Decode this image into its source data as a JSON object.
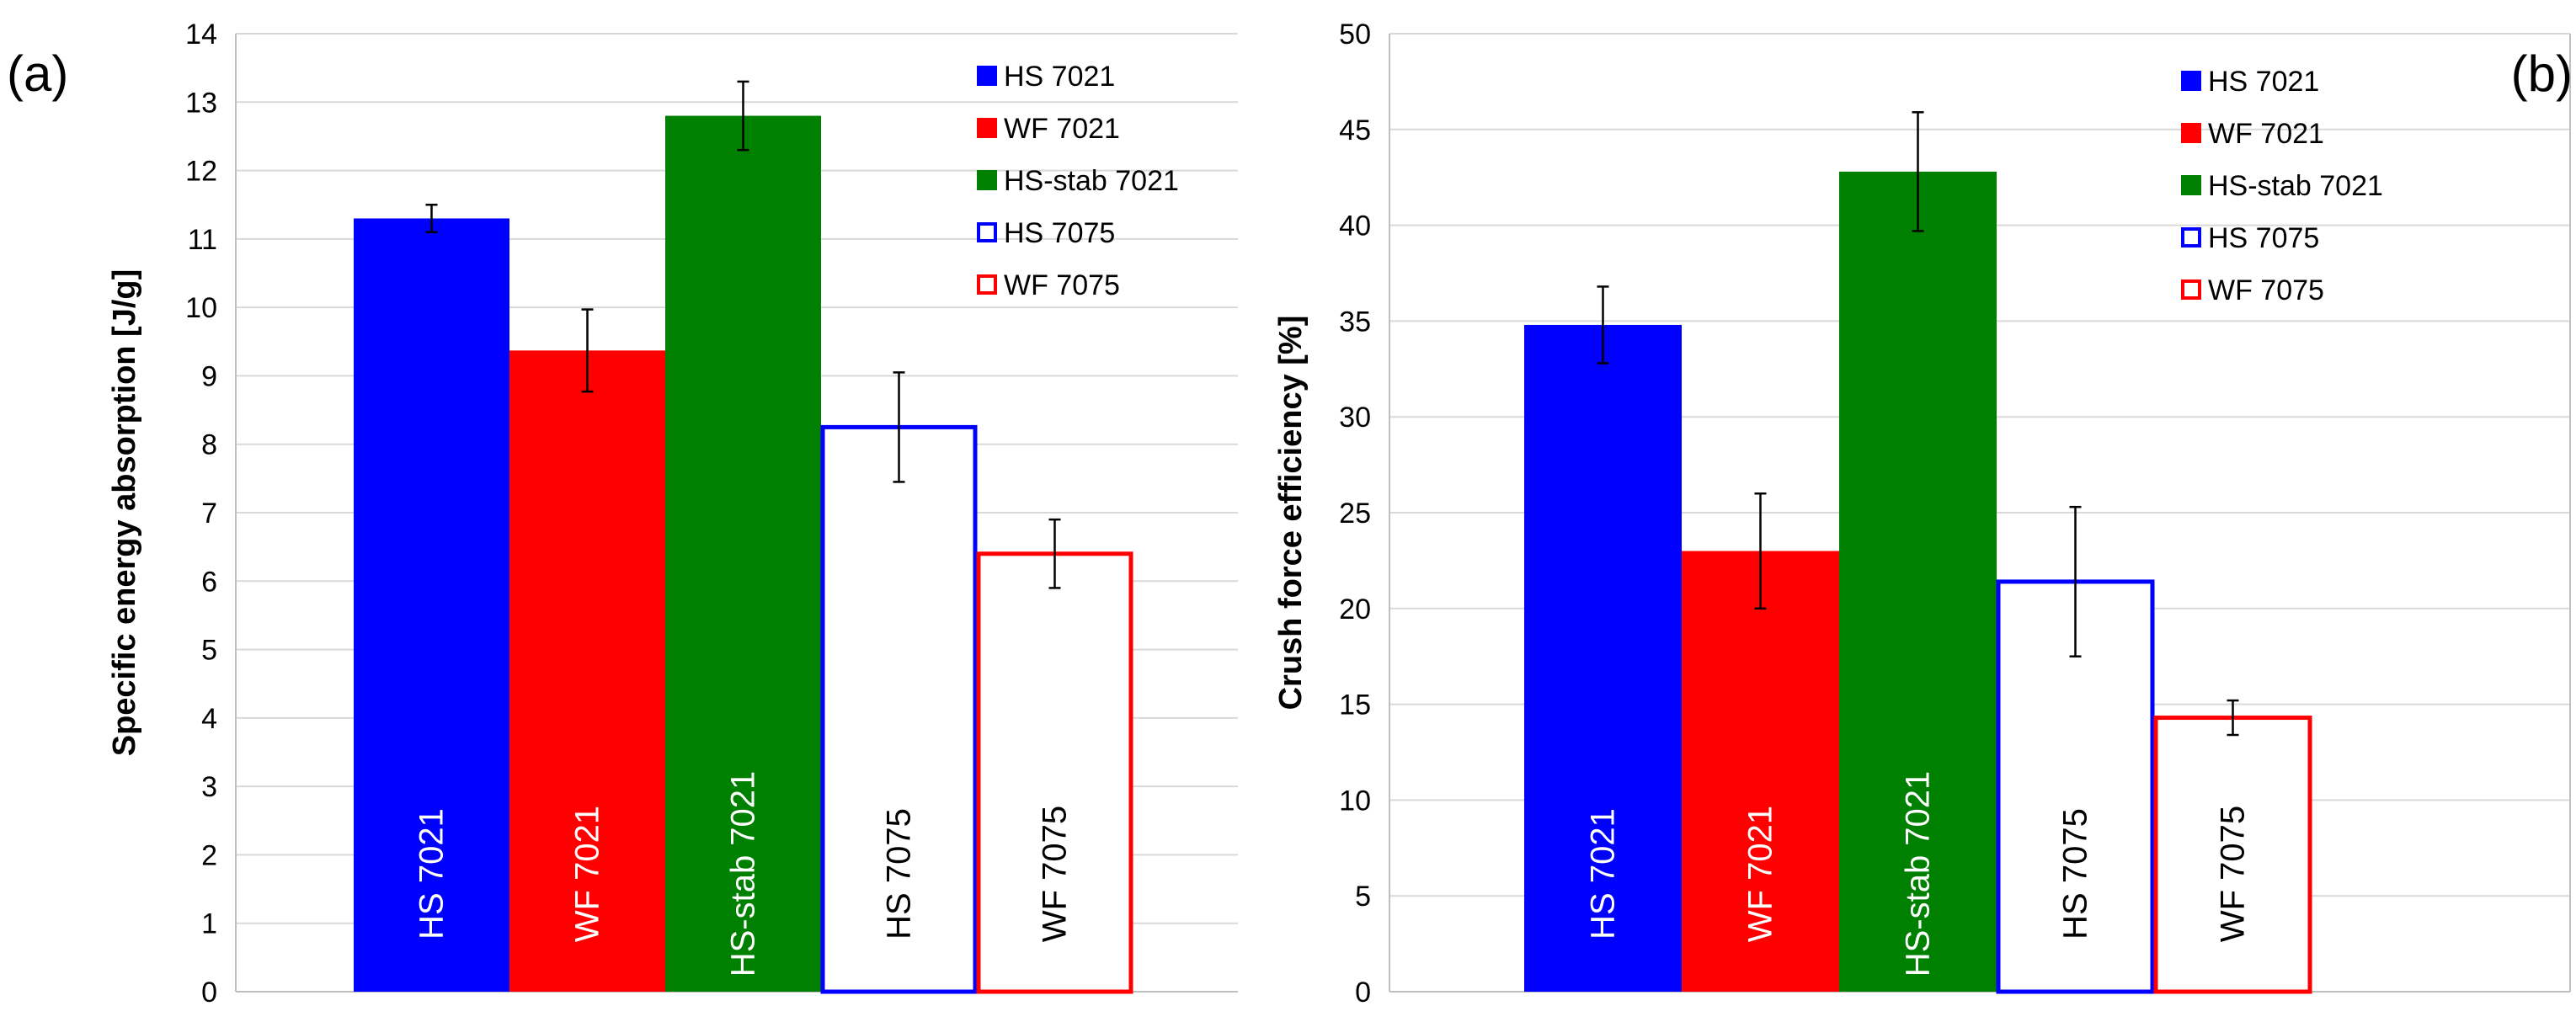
{
  "chart_data": [
    {
      "type": "bar",
      "panel_label": "(a)",
      "ylabel": "Specific energy absorption [J/g]",
      "ylim": [
        0,
        14
      ],
      "yticks": [
        0,
        1,
        2,
        3,
        4,
        5,
        6,
        7,
        8,
        9,
        10,
        11,
        12,
        13,
        14
      ],
      "legend_position": "top-right",
      "categories": [
        "HS 7021",
        "WF 7021",
        "HS-stab 7021",
        "HS 7075",
        "WF 7075"
      ],
      "values": [
        11.3,
        9.37,
        12.8,
        8.25,
        6.4
      ],
      "errors": [
        0.2,
        0.6,
        0.5,
        0.8,
        0.5
      ],
      "fills": [
        "#0000ff",
        "#ff0000",
        "#008000",
        "#ffffff",
        "#ffffff"
      ],
      "strokes": [
        "#0000ff",
        "#ff0000",
        "#008000",
        "#0000ff",
        "#ff0000"
      ],
      "label_colors": [
        "#ffffff",
        "#ffffff",
        "#ffffff",
        "#000000",
        "#000000"
      ],
      "legend": [
        "HS 7021",
        "WF 7021",
        "HS-stab 7021",
        "HS 7075",
        "WF 7075"
      ]
    },
    {
      "type": "bar",
      "panel_label": "(b)",
      "ylabel": "Crush force efficiency [%]",
      "ylim": [
        0,
        50
      ],
      "yticks": [
        0,
        5,
        10,
        15,
        20,
        25,
        30,
        35,
        40,
        45,
        50
      ],
      "legend_position": "top-right",
      "categories": [
        "HS 7021",
        "WF 7021",
        "HS-stab 7021",
        "HS 7075",
        "WF 7075"
      ],
      "values": [
        34.8,
        23.0,
        42.8,
        21.4,
        14.3
      ],
      "errors": [
        2.0,
        3.0,
        3.1,
        3.9,
        0.9
      ],
      "fills": [
        "#0000ff",
        "#ff0000",
        "#008000",
        "#ffffff",
        "#ffffff"
      ],
      "strokes": [
        "#0000ff",
        "#ff0000",
        "#008000",
        "#0000ff",
        "#ff0000"
      ],
      "label_colors": [
        "#ffffff",
        "#ffffff",
        "#ffffff",
        "#000000",
        "#000000"
      ],
      "legend": [
        "HS 7021",
        "WF 7021",
        "HS-stab 7021",
        "HS 7075",
        "WF 7075"
      ]
    }
  ]
}
